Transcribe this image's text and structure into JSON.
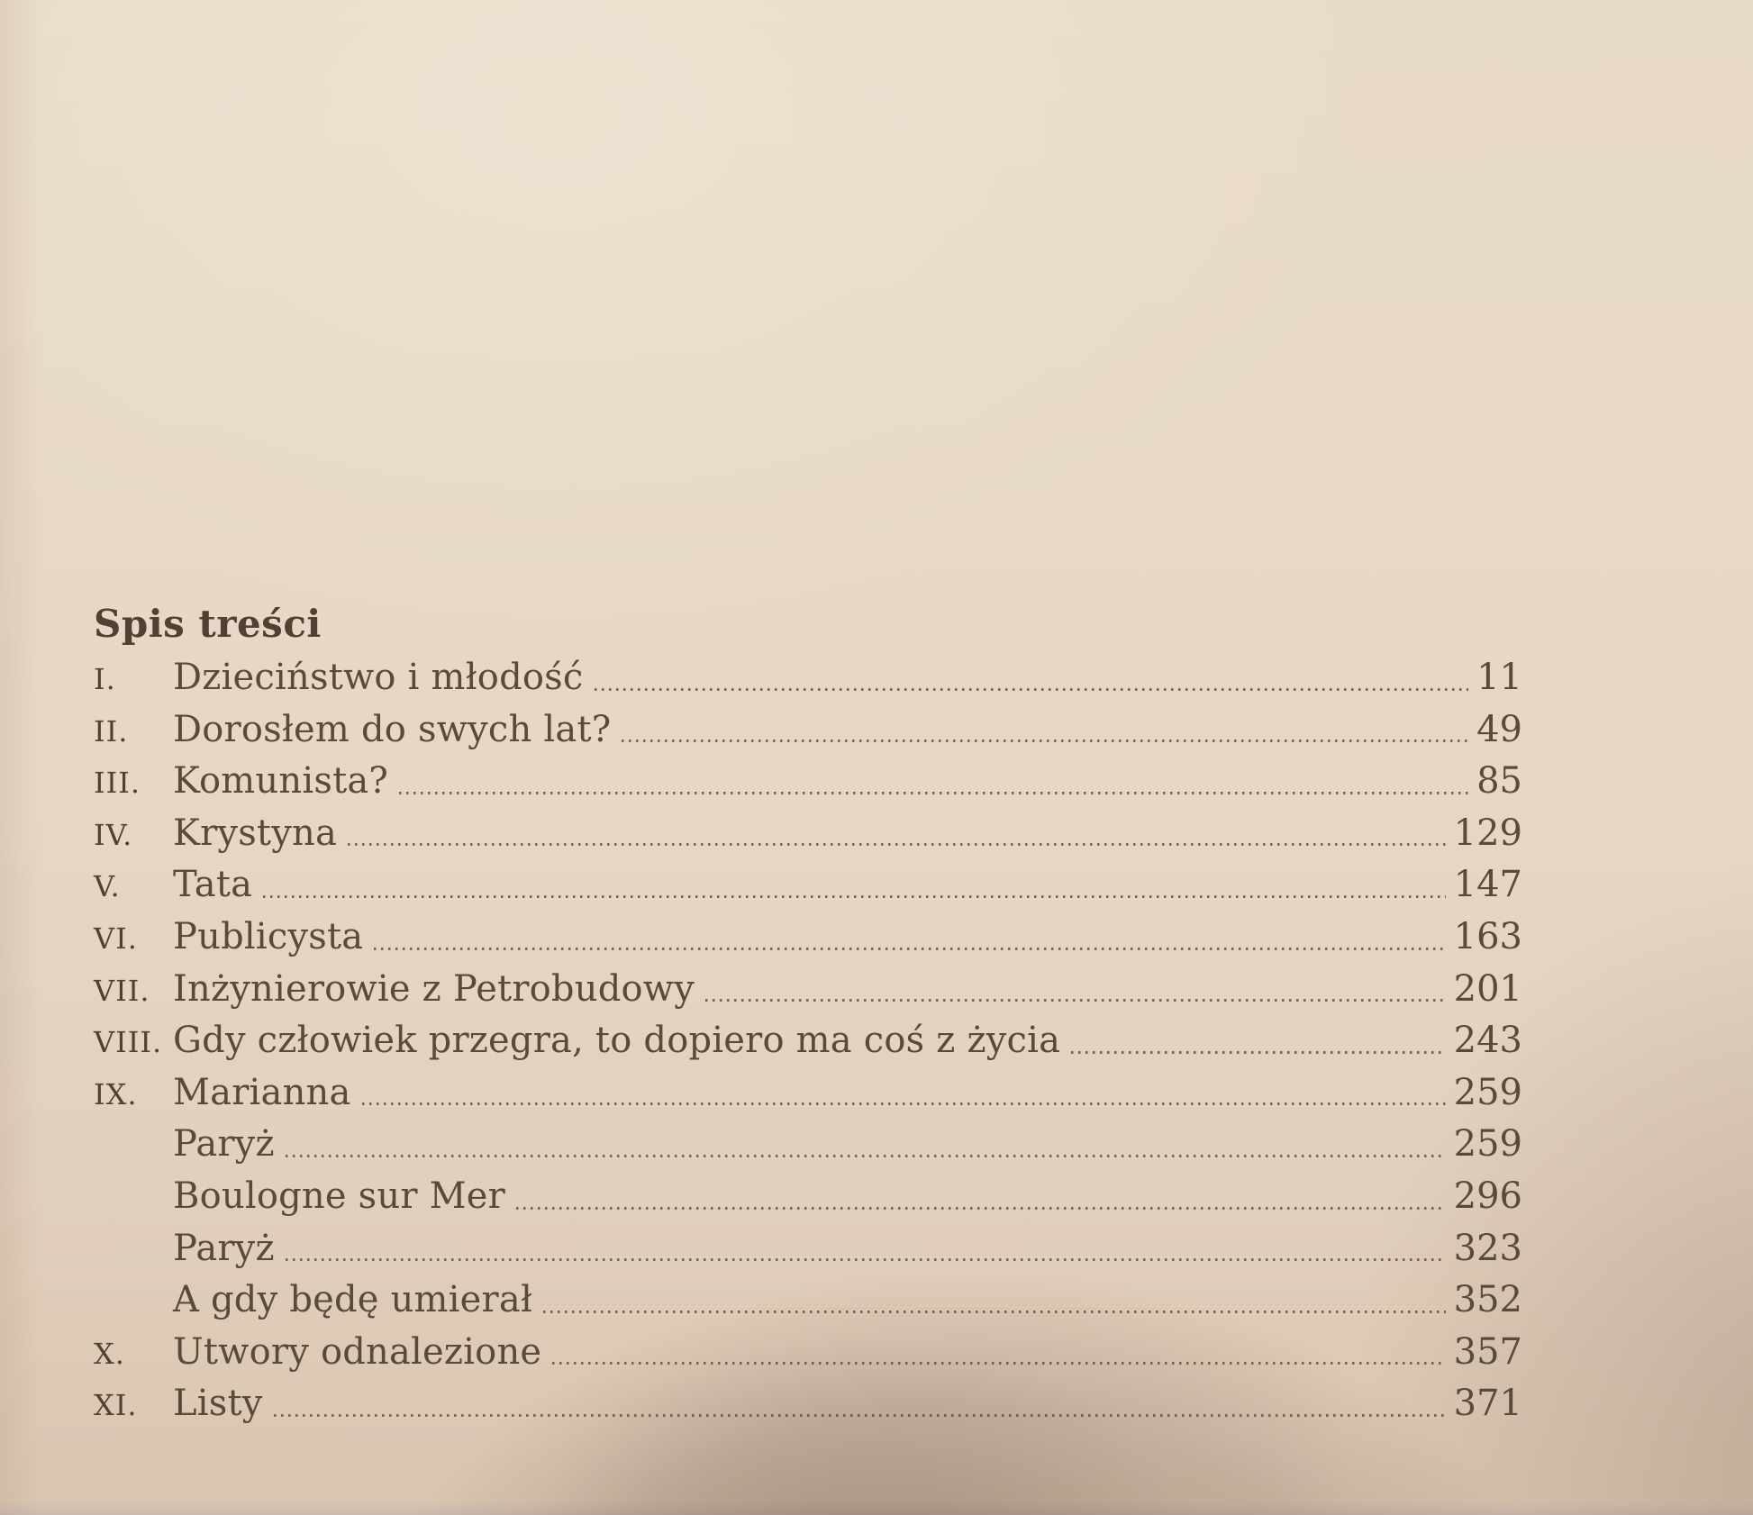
{
  "toc": {
    "title": "Spis treści",
    "entries": [
      {
        "num": "I.",
        "title": "Dzieciństwo i młodość",
        "page": "11"
      },
      {
        "num": "II.",
        "title": "Dorosłem do swych lat?",
        "page": "49"
      },
      {
        "num": "III.",
        "title": "Komunista?",
        "page": "85"
      },
      {
        "num": "IV.",
        "title": "Krystyna",
        "page": "129"
      },
      {
        "num": "V.",
        "title": "Tata",
        "page": "147"
      },
      {
        "num": "VI.",
        "title": "Publicysta",
        "page": "163"
      },
      {
        "num": "VII.",
        "title": "Inżynierowie z Petrobudowy",
        "page": "201"
      },
      {
        "num": "VIII.",
        "title": "Gdy człowiek przegra, to dopiero ma coś z życia",
        "page": "243"
      },
      {
        "num": "IX.",
        "title": "Marianna",
        "page": "259"
      },
      {
        "num": "",
        "title": "Paryż",
        "page": "259"
      },
      {
        "num": "",
        "title": "Boulogne sur Mer",
        "page": "296"
      },
      {
        "num": "",
        "title": "Paryż",
        "page": "323"
      },
      {
        "num": "",
        "title": "A gdy będę umierał",
        "page": "352"
      },
      {
        "num": "X.",
        "title": "Utwory odnalezione",
        "page": "357"
      },
      {
        "num": "XI.",
        "title": "Listy",
        "page": "371"
      }
    ]
  },
  "colors": {
    "paper": "#e7d8c5",
    "ink": "#5a4a3b",
    "ink_dark": "#4f4134",
    "leader_dot": "#5c4936"
  }
}
